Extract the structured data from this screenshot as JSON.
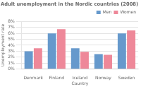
{
  "chart_data": {
    "type": "bar",
    "title": "Adult unemployment in the Nordic countries (2008)",
    "xlabel": "Country",
    "ylabel": "Unemployment rate",
    "categories": [
      "Denmark",
      "Finland",
      "Iceland",
      "Norway",
      "Sweden"
    ],
    "series": [
      {
        "name": "Men",
        "color": "#6699cc",
        "values": [
          3.0,
          6.0,
          3.5,
          2.5,
          6.0
        ]
      },
      {
        "name": "Women",
        "color": "#ee8899",
        "values": [
          3.5,
          6.7,
          2.9,
          2.4,
          6.5
        ]
      }
    ],
    "ylim": [
      0,
      8
    ],
    "yticks": [
      {
        "value": 0,
        "label": "0%"
      },
      {
        "value": 1,
        "label": "1%"
      },
      {
        "value": 2,
        "label": "2%"
      },
      {
        "value": 3,
        "label": "3%"
      },
      {
        "value": 4,
        "label": "4%"
      },
      {
        "value": 5,
        "label": "5%"
      },
      {
        "value": 6,
        "label": "6%"
      },
      {
        "value": 7,
        "label": "7%"
      },
      {
        "value": 8,
        "label": "8%"
      }
    ],
    "grid": "y",
    "legend": "upper right"
  }
}
